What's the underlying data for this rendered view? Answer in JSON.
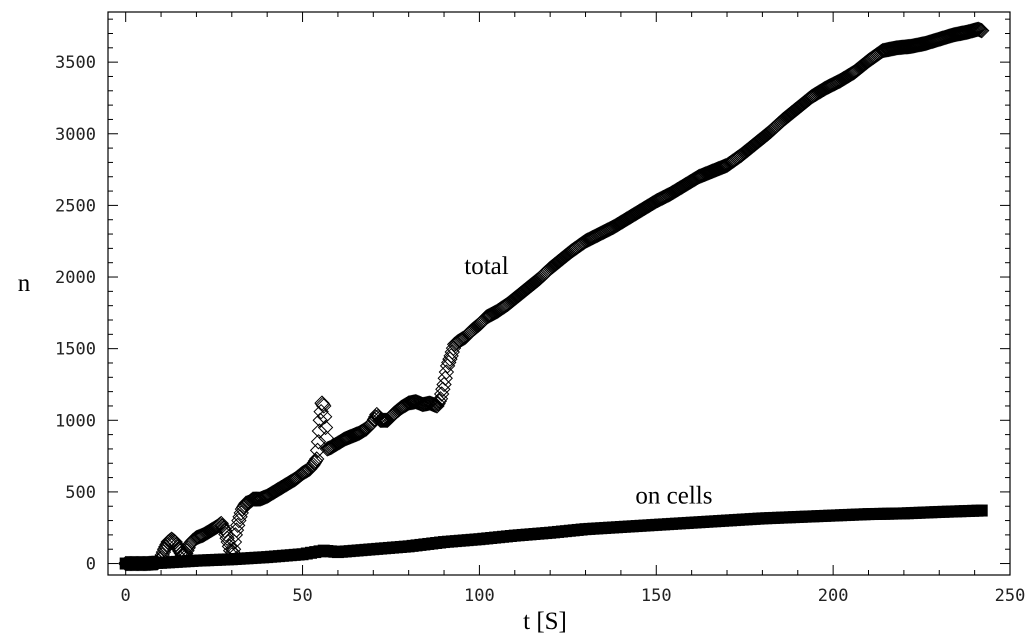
{
  "chart_data": {
    "type": "scatter",
    "title": "",
    "xlabel": "t [S]",
    "ylabel": "n",
    "xlim": [
      -5,
      250
    ],
    "ylim": [
      -80,
      3850
    ],
    "xticks": [
      0,
      50,
      100,
      150,
      200,
      250
    ],
    "yticks": [
      0,
      500,
      1000,
      1500,
      2000,
      2500,
      3000,
      3500
    ],
    "grid": false,
    "legend": "none",
    "annotations": [
      {
        "text": "total",
        "x": 102,
        "y": 2020
      },
      {
        "text": "on cells",
        "x": 155,
        "y": 420
      }
    ],
    "series": [
      {
        "marker": "open-diamond",
        "color": "#000000",
        "points": [
          [
            0,
            0
          ],
          [
            3,
            0
          ],
          [
            6,
            0
          ],
          [
            9,
            5
          ],
          [
            10,
            40
          ],
          [
            11,
            100
          ],
          [
            12,
            150
          ],
          [
            13,
            170
          ],
          [
            14,
            150
          ],
          [
            15,
            100
          ],
          [
            16,
            60
          ],
          [
            17,
            70
          ],
          [
            18,
            130
          ],
          [
            19,
            160
          ],
          [
            20,
            180
          ],
          [
            22,
            200
          ],
          [
            24,
            230
          ],
          [
            26,
            260
          ],
          [
            27,
            280
          ],
          [
            28,
            230
          ],
          [
            29,
            150
          ],
          [
            30,
            60
          ],
          [
            30.5,
            100
          ],
          [
            31,
            200
          ],
          [
            32,
            300
          ],
          [
            33,
            380
          ],
          [
            34,
            420
          ],
          [
            35,
            430
          ],
          [
            36,
            450
          ],
          [
            38,
            450
          ],
          [
            40,
            470
          ],
          [
            42,
            500
          ],
          [
            44,
            530
          ],
          [
            46,
            560
          ],
          [
            48,
            590
          ],
          [
            50,
            630
          ],
          [
            52,
            660
          ],
          [
            53,
            690
          ],
          [
            54,
            730
          ],
          [
            54.5,
            850
          ],
          [
            55,
            1000
          ],
          [
            55.5,
            1120
          ],
          [
            56,
            1100
          ],
          [
            56.5,
            950
          ],
          [
            57,
            800
          ],
          [
            58,
            810
          ],
          [
            60,
            840
          ],
          [
            62,
            870
          ],
          [
            64,
            890
          ],
          [
            66,
            910
          ],
          [
            68,
            940
          ],
          [
            70,
            990
          ],
          [
            71,
            1040
          ],
          [
            72,
            1000
          ],
          [
            74,
            1000
          ],
          [
            76,
            1050
          ],
          [
            78,
            1090
          ],
          [
            80,
            1120
          ],
          [
            82,
            1130
          ],
          [
            84,
            1110
          ],
          [
            86,
            1120
          ],
          [
            88,
            1100
          ],
          [
            89,
            1150
          ],
          [
            90,
            1250
          ],
          [
            91,
            1380
          ],
          [
            92,
            1450
          ],
          [
            93,
            1530
          ],
          [
            94,
            1550
          ],
          [
            96,
            1580
          ],
          [
            98,
            1630
          ],
          [
            100,
            1670
          ],
          [
            102,
            1720
          ],
          [
            105,
            1760
          ],
          [
            108,
            1810
          ],
          [
            111,
            1870
          ],
          [
            114,
            1930
          ],
          [
            117,
            1990
          ],
          [
            120,
            2060
          ],
          [
            123,
            2120
          ],
          [
            126,
            2180
          ],
          [
            130,
            2250
          ],
          [
            134,
            2300
          ],
          [
            138,
            2350
          ],
          [
            142,
            2410
          ],
          [
            146,
            2470
          ],
          [
            150,
            2530
          ],
          [
            154,
            2580
          ],
          [
            158,
            2640
          ],
          [
            162,
            2700
          ],
          [
            166,
            2740
          ],
          [
            170,
            2780
          ],
          [
            174,
            2850
          ],
          [
            178,
            2930
          ],
          [
            182,
            3010
          ],
          [
            186,
            3100
          ],
          [
            190,
            3180
          ],
          [
            194,
            3260
          ],
          [
            198,
            3320
          ],
          [
            202,
            3370
          ],
          [
            206,
            3430
          ],
          [
            210,
            3510
          ],
          [
            214,
            3580
          ],
          [
            218,
            3600
          ],
          [
            222,
            3610
          ],
          [
            226,
            3630
          ],
          [
            230,
            3660
          ],
          [
            234,
            3690
          ],
          [
            238,
            3710
          ],
          [
            241,
            3730
          ],
          [
            242,
            3720
          ]
        ]
      },
      {
        "marker": "filled-square",
        "color": "#000000",
        "points": [
          [
            0,
            0
          ],
          [
            10,
            5
          ],
          [
            20,
            20
          ],
          [
            30,
            30
          ],
          [
            40,
            45
          ],
          [
            50,
            65
          ],
          [
            56,
            90
          ],
          [
            60,
            80
          ],
          [
            70,
            100
          ],
          [
            80,
            120
          ],
          [
            90,
            150
          ],
          [
            100,
            170
          ],
          [
            110,
            195
          ],
          [
            120,
            215
          ],
          [
            130,
            240
          ],
          [
            140,
            255
          ],
          [
            150,
            270
          ],
          [
            160,
            285
          ],
          [
            170,
            300
          ],
          [
            180,
            315
          ],
          [
            190,
            325
          ],
          [
            200,
            335
          ],
          [
            210,
            345
          ],
          [
            220,
            350
          ],
          [
            230,
            360
          ],
          [
            242,
            370
          ]
        ]
      }
    ]
  }
}
